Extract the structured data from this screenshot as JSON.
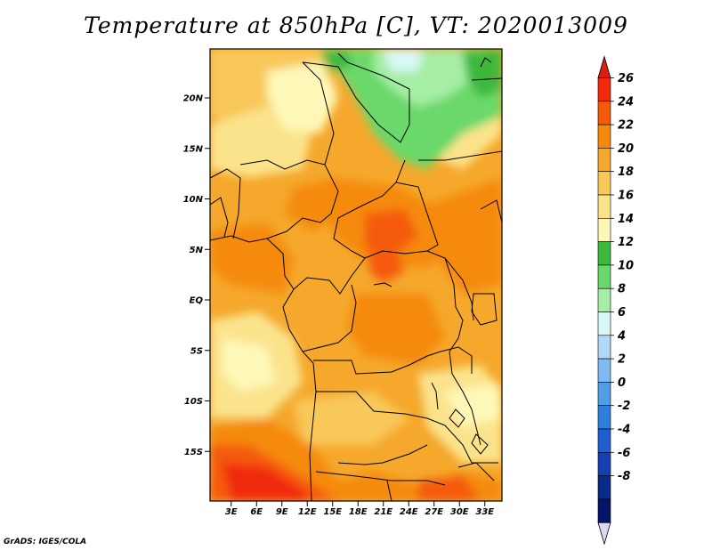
{
  "title": "Temperature at 850hPa [C], VT: 2020013009",
  "credit": "GrADS: IGES/COLA",
  "lat_labels": [
    {
      "lat": 20,
      "text": "20N"
    },
    {
      "lat": 15,
      "text": "15N"
    },
    {
      "lat": 10,
      "text": "10N"
    },
    {
      "lat": 5,
      "text": "5N"
    },
    {
      "lat": 0,
      "text": "EQ"
    },
    {
      "lat": -5,
      "text": "5S"
    },
    {
      "lat": -10,
      "text": "10S"
    },
    {
      "lat": -15,
      "text": "15S"
    }
  ],
  "lon_labels": [
    {
      "lon": 3,
      "text": "3E"
    },
    {
      "lon": 6,
      "text": "6E"
    },
    {
      "lon": 9,
      "text": "9E"
    },
    {
      "lon": 12,
      "text": "12E"
    },
    {
      "lon": 15,
      "text": "15E"
    },
    {
      "lon": 18,
      "text": "18E"
    },
    {
      "lon": 21,
      "text": "21E"
    },
    {
      "lon": 24,
      "text": "24E"
    },
    {
      "lon": 27,
      "text": "27E"
    },
    {
      "lon": 30,
      "text": "30E"
    },
    {
      "lon": 33,
      "text": "33E"
    }
  ],
  "colorbar": {
    "levels": [
      "26",
      "24",
      "22",
      "20",
      "18",
      "16",
      "14",
      "12",
      "10",
      "8",
      "6",
      "4",
      "2",
      "0",
      "-2",
      "-4",
      "-6",
      "-8"
    ],
    "colors": [
      "#f02a0a",
      "#f55a0a",
      "#f58a0a",
      "#f5a82c",
      "#f8c85a",
      "#fbe38c",
      "#fef8b8",
      "#3cb83c",
      "#6ad86a",
      "#a6eea6",
      "#d8f8f8",
      "#b0d8f8",
      "#80baf2",
      "#509ee6",
      "#2f80dc",
      "#1e5ed0",
      "#1440b4",
      "#0a2a8a",
      "#061468"
    ],
    "top_color": "#d81e0e",
    "bottom_color": "#d8d8ee"
  }
}
